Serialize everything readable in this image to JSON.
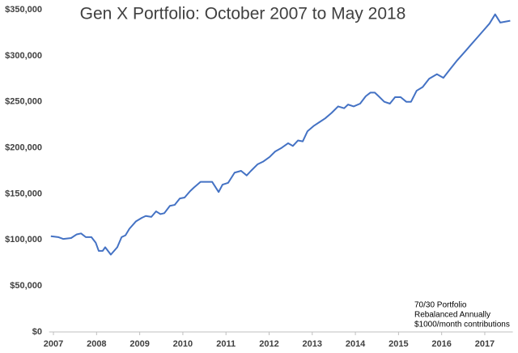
{
  "chart_data": {
    "type": "line",
    "title": "Gen X Portfolio: October 2007 to May 2018",
    "annotation": [
      "70/30 Portfolio",
      "Rebalanced Annually",
      "$1000/month contributions"
    ],
    "x": [
      2006.94,
      2007.11,
      2007.23,
      2007.41,
      2007.54,
      2007.64,
      2007.75,
      2007.88,
      2007.98,
      2008.05,
      2008.14,
      2008.2,
      2008.33,
      2008.48,
      2008.58,
      2008.67,
      2008.76,
      2008.91,
      2009.05,
      2009.14,
      2009.27,
      2009.38,
      2009.48,
      2009.57,
      2009.7,
      2009.81,
      2009.93,
      2010.04,
      2010.17,
      2010.26,
      2010.41,
      2010.54,
      2010.68,
      2010.83,
      2010.92,
      2011.05,
      2011.2,
      2011.35,
      2011.48,
      2011.58,
      2011.73,
      2011.86,
      2012.01,
      2012.14,
      2012.29,
      2012.44,
      2012.55,
      2012.67,
      2012.78,
      2012.89,
      2013.04,
      2013.17,
      2013.3,
      2013.45,
      2013.6,
      2013.74,
      2013.83,
      2013.96,
      2014.11,
      2014.24,
      2014.35,
      2014.45,
      2014.54,
      2014.67,
      2014.8,
      2014.92,
      2015.05,
      2015.18,
      2015.29,
      2015.42,
      2015.56,
      2015.71,
      2015.89,
      2016.04,
      2016.19,
      2016.36,
      2016.55,
      2016.68,
      2016.83,
      2016.98,
      2017.11,
      2017.24,
      2017.36,
      2017.59
    ],
    "series": [
      {
        "name": "Portfolio",
        "color": "#4472c4",
        "values": [
          104000,
          103000,
          101000,
          102000,
          106000,
          107000,
          103000,
          103000,
          97000,
          88000,
          88000,
          92000,
          84000,
          92000,
          103000,
          105000,
          112000,
          120000,
          124000,
          126000,
          125000,
          131000,
          128000,
          129000,
          137000,
          138000,
          145000,
          146000,
          153000,
          157000,
          163000,
          163000,
          163000,
          152000,
          160000,
          162000,
          173000,
          175000,
          170000,
          175000,
          182000,
          185000,
          190000,
          196000,
          200000,
          205000,
          202000,
          208000,
          207000,
          218000,
          224000,
          228000,
          232000,
          238000,
          245000,
          243000,
          247000,
          245000,
          248000,
          256000,
          260000,
          260000,
          256000,
          250000,
          248000,
          255000,
          255000,
          250000,
          250000,
          262000,
          266000,
          275000,
          280000,
          276000,
          285000,
          295000,
          305000,
          312000,
          320000,
          328000,
          335000,
          345000,
          336000,
          338000
        ]
      }
    ],
    "xlim": [
      2006.9,
      2017.65
    ],
    "xticks": [
      2007,
      2008,
      2009,
      2010,
      2011,
      2012,
      2013,
      2014,
      2015,
      2016,
      2017
    ],
    "ylim": [
      0,
      350000
    ],
    "yticks": [
      {
        "value": 0,
        "label": "$0"
      },
      {
        "value": 50000,
        "label": "$50,000"
      },
      {
        "value": 100000,
        "label": "$100,000"
      },
      {
        "value": 150000,
        "label": "$150,000"
      },
      {
        "value": 200000,
        "label": "$200,000"
      },
      {
        "value": 250000,
        "label": "$250,000"
      },
      {
        "value": 300000,
        "label": "$300,000"
      },
      {
        "value": 350000,
        "label": "$350,000"
      }
    ],
    "grid": false
  }
}
